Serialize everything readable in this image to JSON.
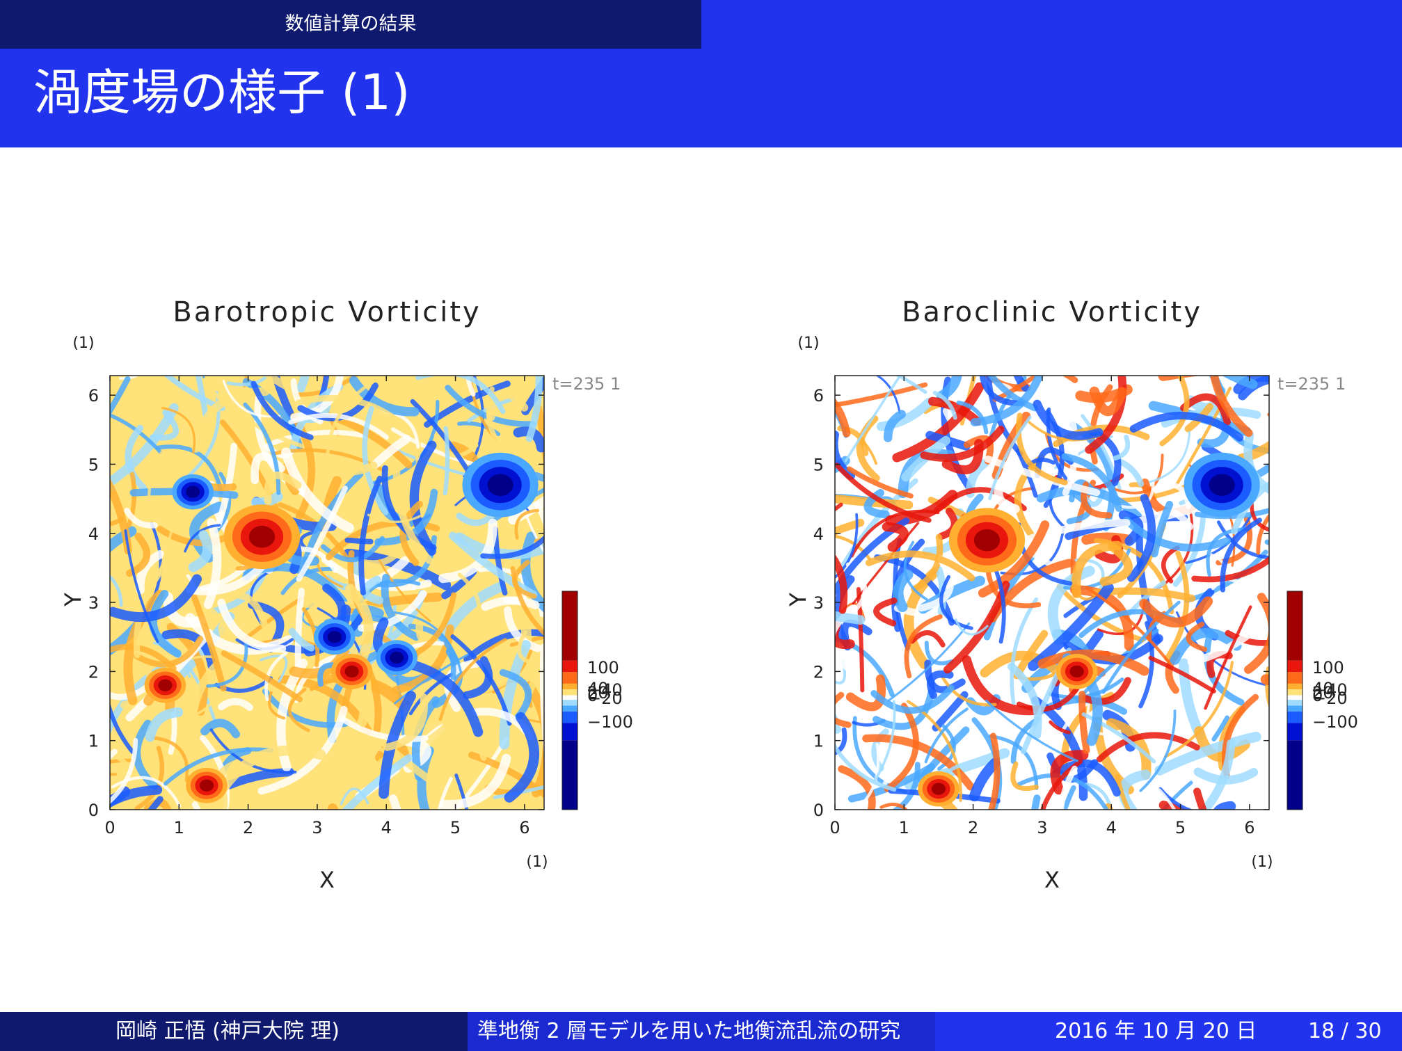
{
  "header": {
    "section": "数値計算の結果",
    "title": "渦度場の様子 (1)"
  },
  "footer": {
    "author": "岡崎 正悟 (神戸大院 理)",
    "talk_title": "準地衡 2 層モデルを用いた地衡流乱流の研究",
    "date": "2016 年 10 月 20 日",
    "page": "18 / 30"
  },
  "chart_data": [
    {
      "type": "heatmap",
      "title": "Barotropic Vorticity",
      "xlabel": "X",
      "ylabel": "Y",
      "x_unit_label": "(1)",
      "y_unit_label": "(1)",
      "time_label": "t=235 1",
      "xlim": [
        0,
        6.2832
      ],
      "ylim": [
        0,
        6.2832
      ],
      "x_ticks": [
        "0",
        "1",
        "2",
        "3",
        "4",
        "5",
        "6"
      ],
      "y_ticks": [
        "0",
        "1",
        "2",
        "3",
        "4",
        "5",
        "6"
      ],
      "colorbar_ticks": [
        "100",
        "40",
        "20",
        "0",
        "-20",
        "-40",
        "-100"
      ],
      "colormap": [
        "#00008b",
        "#0010d0",
        "#1a5cff",
        "#4aa8ff",
        "#9fdcff",
        "#ffffff",
        "#ffe27a",
        "#ffb030",
        "#ff6a1a",
        "#e8160c",
        "#a00000"
      ],
      "background_level": 0.6,
      "vortices": [
        {
          "x": 5.65,
          "y": 4.7,
          "sign": "negative",
          "strength": "strong"
        },
        {
          "x": 2.2,
          "y": 3.95,
          "sign": "positive",
          "strength": "strong"
        },
        {
          "x": 0.8,
          "y": 1.8,
          "sign": "positive",
          "strength": "moderate"
        },
        {
          "x": 1.4,
          "y": 0.35,
          "sign": "positive",
          "strength": "moderate"
        },
        {
          "x": 3.5,
          "y": 2.0,
          "sign": "positive",
          "strength": "moderate"
        },
        {
          "x": 4.15,
          "y": 2.2,
          "sign": "negative",
          "strength": "moderate"
        },
        {
          "x": 3.25,
          "y": 2.5,
          "sign": "negative",
          "strength": "moderate"
        },
        {
          "x": 1.2,
          "y": 4.6,
          "sign": "negative",
          "strength": "moderate"
        }
      ]
    },
    {
      "type": "heatmap",
      "title": "Baroclinic Vorticity",
      "xlabel": "X",
      "ylabel": "Y",
      "x_unit_label": "(1)",
      "y_unit_label": "(1)",
      "time_label": "t=235 1",
      "xlim": [
        0,
        6.2832
      ],
      "ylim": [
        0,
        6.2832
      ],
      "x_ticks": [
        "0",
        "1",
        "2",
        "3",
        "4",
        "5",
        "6"
      ],
      "y_ticks": [
        "0",
        "1",
        "2",
        "3",
        "4",
        "5",
        "6"
      ],
      "colorbar_ticks": [
        "100",
        "40",
        "20",
        "0",
        "-20",
        "-40",
        "-100"
      ],
      "colormap": [
        "#00008b",
        "#0010d0",
        "#1a5cff",
        "#4aa8ff",
        "#9fdcff",
        "#ffffff",
        "#ffe27a",
        "#ffb030",
        "#ff6a1a",
        "#e8160c",
        "#a00000"
      ],
      "background_level": 0.5,
      "vortices": [
        {
          "x": 5.6,
          "y": 4.7,
          "sign": "negative",
          "strength": "strong"
        },
        {
          "x": 2.2,
          "y": 3.9,
          "sign": "positive",
          "strength": "strong"
        },
        {
          "x": 1.5,
          "y": 0.3,
          "sign": "positive",
          "strength": "moderate"
        },
        {
          "x": 3.5,
          "y": 2.0,
          "sign": "positive",
          "strength": "moderate"
        }
      ]
    }
  ]
}
